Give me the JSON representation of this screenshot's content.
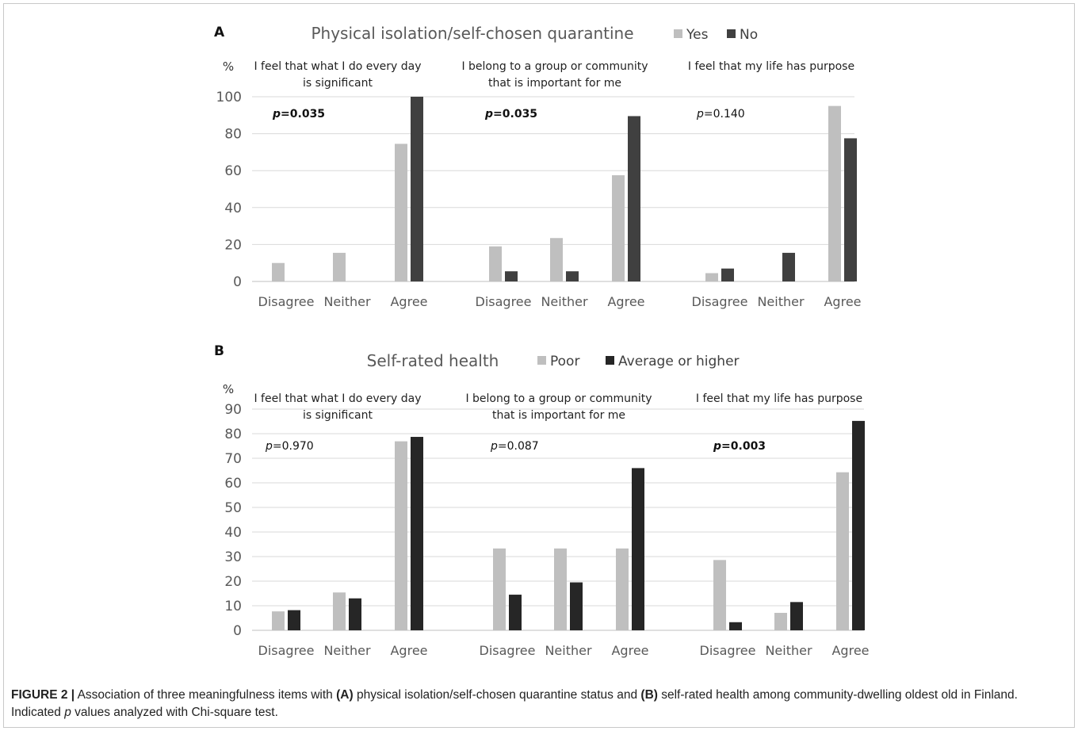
{
  "figure": {
    "caption": {
      "fig_label": "FIGURE 2 |",
      "t1": " Association of three meaningfulness items with ",
      "a": "(A)",
      "t2": " physical isolation/self-chosen quarantine status and ",
      "b": "(B)",
      "t3": " self-rated health among community-dwelling oldest old in Finland. Indicated ",
      "p": "p",
      "t4": " values analyzed with Chi-square test."
    }
  },
  "colors": {
    "light": "#bfbfbf",
    "dark": "#404040",
    "darker": "#262626",
    "grid": "#d9d9d9"
  },
  "chart_data": [
    {
      "panel": "A",
      "type": "bar",
      "title": "Physical isolation/self-chosen quarantine",
      "ylabel": "%",
      "ylim": [
        0,
        100
      ],
      "yticks": [
        0,
        20,
        40,
        60,
        80,
        100
      ],
      "legend_position": "top, right of title",
      "series_names": [
        "Yes",
        "No"
      ],
      "groups": [
        {
          "title_lines": [
            "I feel that what I do every day",
            "is significant"
          ],
          "p_prefix": "p",
          "p_value": "=0.035",
          "p_bold": true,
          "categories": [
            "Disagree",
            "Neither",
            "Agree"
          ],
          "series": [
            {
              "name": "Yes",
              "values": [
                10,
                15.5,
                74.5
              ]
            },
            {
              "name": "No",
              "values": [
                0,
                0,
                100
              ]
            }
          ]
        },
        {
          "title_lines": [
            "I belong to a group or community",
            "that is important for me"
          ],
          "p_prefix": "p",
          "p_value": "=0.035",
          "p_bold": true,
          "categories": [
            "Disagree",
            "Neither",
            "Agree"
          ],
          "series": [
            {
              "name": "Yes",
              "values": [
                19,
                23.5,
                57.5
              ]
            },
            {
              "name": "No",
              "values": [
                5.5,
                5.5,
                89.5
              ]
            }
          ]
        },
        {
          "title_lines": [
            "I feel that my life has purpose"
          ],
          "p_prefix": "p",
          "p_value": "=0.140",
          "p_bold": false,
          "categories": [
            "Disagree",
            "Neither",
            "Agree"
          ],
          "series": [
            {
              "name": "Yes",
              "values": [
                4.5,
                0,
                95
              ]
            },
            {
              "name": "No",
              "values": [
                7,
                15.5,
                77.5
              ]
            }
          ]
        }
      ]
    },
    {
      "panel": "B",
      "type": "bar",
      "title": "Self-rated health",
      "ylabel": "%",
      "ylim": [
        0,
        90
      ],
      "yticks": [
        0,
        10,
        20,
        30,
        40,
        50,
        60,
        70,
        80,
        90
      ],
      "legend_position": "top, right of title",
      "series_names": [
        "Poor",
        "Average or higher"
      ],
      "groups": [
        {
          "title_lines": [
            "I feel that what I do every day",
            "is significant"
          ],
          "p_prefix": "p",
          "p_value": "=0.970",
          "p_bold": false,
          "categories": [
            "Disagree",
            "Neither",
            "Agree"
          ],
          "series": [
            {
              "name": "Poor",
              "values": [
                7.7,
                15.4,
                76.9
              ]
            },
            {
              "name": "Average or higher",
              "values": [
                8.2,
                13,
                78.7
              ]
            }
          ]
        },
        {
          "title_lines": [
            "I belong to a group or community",
            "that is important for me"
          ],
          "p_prefix": "p",
          "p_value": "=0.087",
          "p_bold": false,
          "categories": [
            "Disagree",
            "Neither",
            "Agree"
          ],
          "series": [
            {
              "name": "Poor",
              "values": [
                33.3,
                33.3,
                33.3
              ]
            },
            {
              "name": "Average or higher",
              "values": [
                14.5,
                19.5,
                66
              ]
            }
          ]
        },
        {
          "title_lines": [
            "I feel that my life has purpose"
          ],
          "p_prefix": "p",
          "p_value": "=0.003",
          "p_bold": true,
          "categories": [
            "Disagree",
            "Neither",
            "Agree"
          ],
          "series": [
            {
              "name": "Poor",
              "values": [
                28.6,
                7.1,
                64.3
              ]
            },
            {
              "name": "Average or higher",
              "values": [
                3.3,
                11.5,
                85.2
              ]
            }
          ]
        }
      ]
    }
  ]
}
